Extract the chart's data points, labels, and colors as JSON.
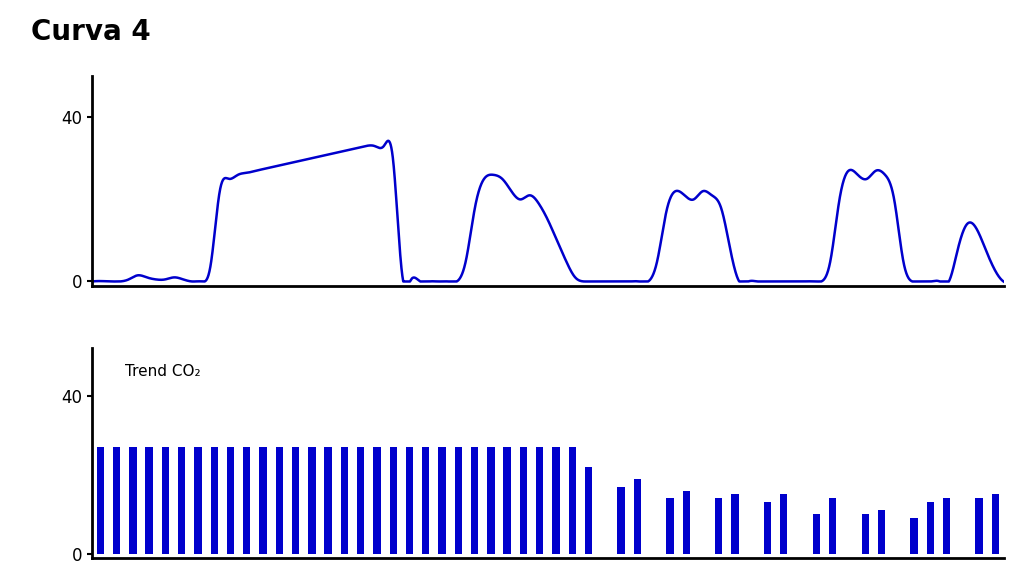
{
  "title": "Curva 4",
  "title_fontsize": 20,
  "title_fontweight": "bold",
  "background_color": "#ffffff",
  "line_color": "#0000cc",
  "bar_color": "#0000cc",
  "axis_color": "#000000",
  "top_chart": {
    "yticks": [
      0,
      40
    ],
    "ylim": [
      -1,
      50
    ]
  },
  "bottom_chart": {
    "label": "Trend CO₂",
    "yticks": [
      0,
      40
    ],
    "ylim": [
      -1,
      52
    ],
    "bar_values": [
      27,
      27,
      27,
      27,
      27,
      27,
      27,
      27,
      27,
      27,
      27,
      27,
      27,
      27,
      27,
      27,
      27,
      27,
      27,
      27,
      27,
      27,
      27,
      27,
      27,
      27,
      27,
      27,
      27,
      27,
      22,
      0,
      17,
      19,
      0,
      14,
      16,
      0,
      14,
      15,
      0,
      13,
      15,
      0,
      10,
      14,
      0,
      10,
      11,
      0,
      9,
      13,
      14,
      0,
      14,
      15
    ]
  }
}
